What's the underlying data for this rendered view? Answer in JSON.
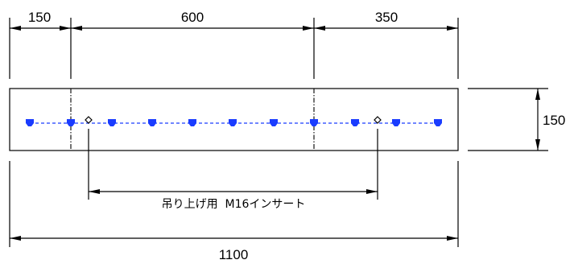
{
  "dimensions": {
    "seg_left": "150",
    "seg_mid": "600",
    "seg_right": "350",
    "overall_length": "1100",
    "height": "150"
  },
  "insert_note": "吊り上げ用  M16インサート",
  "colors": {
    "line": "#000000",
    "marker": "#1a3cff",
    "lifting_point": "#000000"
  }
}
